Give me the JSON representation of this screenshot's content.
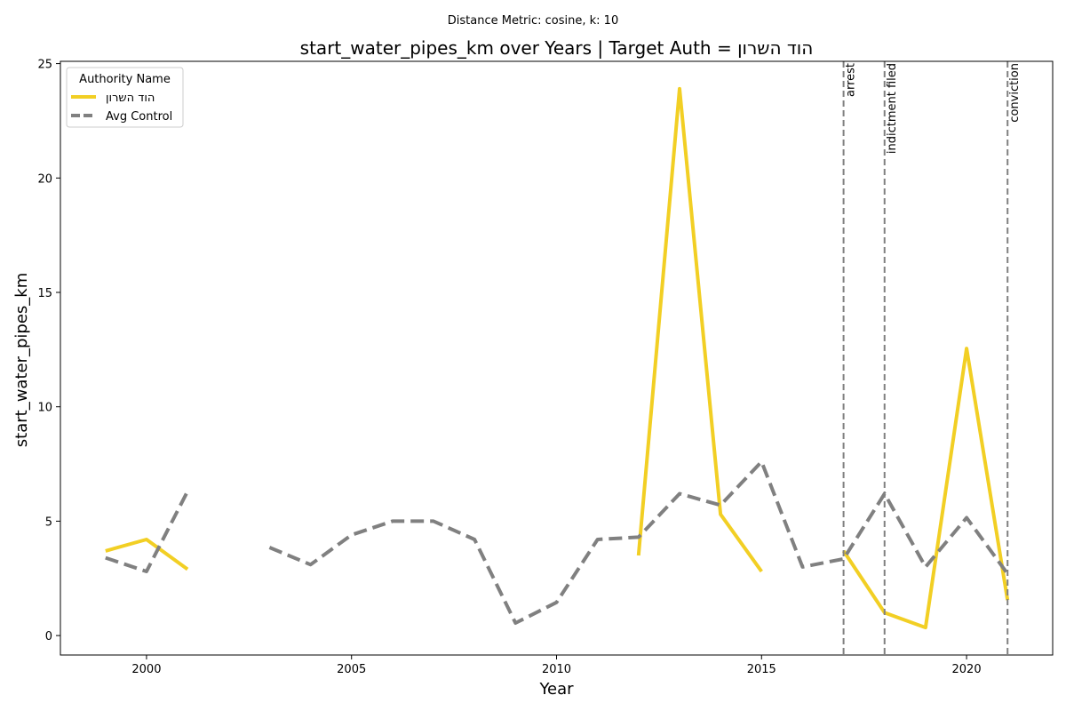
{
  "chart_data": {
    "type": "line",
    "suptitle": "Distance Metric: cosine, k: 10",
    "title": "start_water_pipes_km over Years | Target Auth = הוד השרון",
    "xlabel": "Year",
    "ylabel": "start_water_pipes_km",
    "xlim": [
      1997.9,
      2022.1
    ],
    "ylim": [
      -0.85,
      25.1
    ],
    "xticks": [
      2000,
      2005,
      2010,
      2015,
      2020
    ],
    "yticks": [
      0,
      5,
      10,
      15,
      20,
      25
    ],
    "legend": {
      "title": "Authority Name",
      "position": "top-left"
    },
    "series": [
      {
        "name": "הוד השרון",
        "color": "#f2cf24",
        "style": "solid",
        "points": [
          [
            1999,
            3.7
          ],
          [
            2000,
            4.2
          ],
          [
            2001,
            2.9
          ],
          [
            2002,
            null
          ],
          [
            2003,
            null
          ],
          [
            2004,
            null
          ],
          [
            2005,
            null
          ],
          [
            2006,
            null
          ],
          [
            2007,
            null
          ],
          [
            2008,
            null
          ],
          [
            2009,
            null
          ],
          [
            2010,
            null
          ],
          [
            2011,
            null
          ],
          [
            2012,
            3.5
          ],
          [
            2013,
            23.9
          ],
          [
            2014,
            5.3
          ],
          [
            2015,
            2.8
          ],
          [
            2016,
            null
          ],
          [
            2017,
            3.7
          ],
          [
            2018,
            1.0
          ],
          [
            2019,
            0.35
          ],
          [
            2020,
            12.55
          ],
          [
            2021,
            1.55
          ]
        ]
      },
      {
        "name": "Avg Control",
        "color": "#808080",
        "style": "dashed",
        "points": [
          [
            1999,
            3.4
          ],
          [
            2000,
            2.8
          ],
          [
            2001,
            6.3
          ],
          [
            2002,
            null
          ],
          [
            2003,
            3.85
          ],
          [
            2004,
            3.1
          ],
          [
            2005,
            4.4
          ],
          [
            2006,
            5.0
          ],
          [
            2007,
            5.0
          ],
          [
            2008,
            4.2
          ],
          [
            2009,
            0.55
          ],
          [
            2010,
            1.45
          ],
          [
            2011,
            4.2
          ],
          [
            2012,
            4.3
          ],
          [
            2013,
            6.2
          ],
          [
            2014,
            5.7
          ],
          [
            2015,
            7.6
          ],
          [
            2016,
            3.0
          ],
          [
            2017,
            3.35
          ],
          [
            2018,
            6.2
          ],
          [
            2019,
            3.0
          ],
          [
            2020,
            5.15
          ],
          [
            2021,
            2.7
          ]
        ]
      }
    ],
    "events": [
      {
        "x": 2017,
        "label": "arrest"
      },
      {
        "x": 2018,
        "label": "indictment filed"
      },
      {
        "x": 2021,
        "label": "conviction"
      }
    ]
  }
}
